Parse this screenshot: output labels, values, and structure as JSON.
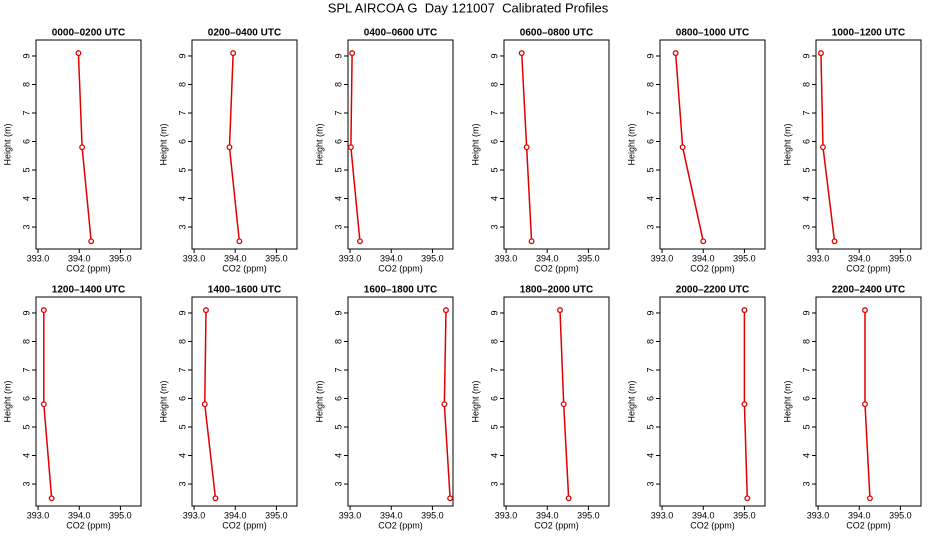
{
  "title": "SPL AIRCOA G  Day 121007  Calibrated Profiles",
  "chart_data": [
    {
      "type": "line",
      "title": "0000–0200 UTC",
      "x_label": "CO2 (ppm)",
      "y_label": "Height (m)",
      "color": "#e00000",
      "xlim": [
        392.95,
        395.5
      ],
      "ylim": [
        2.23,
        9.56
      ],
      "xticks": [
        {
          "value": 393,
          "label": "393.0"
        },
        {
          "value": 394,
          "label": "394.0"
        },
        {
          "value": 395,
          "label": "395.0"
        }
      ],
      "yticks": [
        3,
        4,
        5,
        6,
        7,
        8,
        9
      ],
      "x": [
        393.98,
        394.07,
        394.29
      ],
      "values": [
        9.1,
        5.8,
        2.5
      ]
    },
    {
      "type": "line",
      "title": "0200–0400 UTC",
      "x_label": "CO2 (ppm)",
      "y_label": "Height (m)",
      "color": "#e00000",
      "xlim": [
        392.95,
        395.5
      ],
      "ylim": [
        2.23,
        9.56
      ],
      "xticks": [
        {
          "value": 393,
          "label": "393.0"
        },
        {
          "value": 394,
          "label": "394.0"
        },
        {
          "value": 395,
          "label": "395.0"
        }
      ],
      "yticks": [
        3,
        4,
        5,
        6,
        7,
        8,
        9
      ],
      "x": [
        393.95,
        393.86,
        394.1
      ],
      "values": [
        9.1,
        5.8,
        2.5
      ]
    },
    {
      "type": "line",
      "title": "0400–0600 UTC",
      "x_label": "CO2 (ppm)",
      "y_label": "Height (m)",
      "color": "#e00000",
      "xlim": [
        392.95,
        395.5
      ],
      "ylim": [
        2.23,
        9.56
      ],
      "xticks": [
        {
          "value": 393,
          "label": "393.0"
        },
        {
          "value": 394,
          "label": "394.0"
        },
        {
          "value": 395,
          "label": "395.0"
        }
      ],
      "yticks": [
        3,
        4,
        5,
        6,
        7,
        8,
        9
      ],
      "x": [
        393.05,
        393.02,
        393.24
      ],
      "values": [
        9.1,
        5.8,
        2.5
      ]
    },
    {
      "type": "line",
      "title": "0600–0800 UTC",
      "x_label": "CO2 (ppm)",
      "y_label": "Height (m)",
      "color": "#e00000",
      "xlim": [
        392.95,
        395.5
      ],
      "ylim": [
        2.23,
        9.56
      ],
      "xticks": [
        {
          "value": 393,
          "label": "393.0"
        },
        {
          "value": 394,
          "label": "394.0"
        },
        {
          "value": 395,
          "label": "395.0"
        }
      ],
      "yticks": [
        3,
        4,
        5,
        6,
        7,
        8,
        9
      ],
      "x": [
        393.38,
        393.5,
        393.62
      ],
      "values": [
        9.1,
        5.8,
        2.5
      ]
    },
    {
      "type": "line",
      "title": "0800–1000 UTC",
      "x_label": "CO2 (ppm)",
      "y_label": "Height (m)",
      "color": "#e00000",
      "xlim": [
        392.95,
        395.5
      ],
      "ylim": [
        2.23,
        9.56
      ],
      "xticks": [
        {
          "value": 393,
          "label": "393.0"
        },
        {
          "value": 394,
          "label": "394.0"
        },
        {
          "value": 395,
          "label": "395.0"
        }
      ],
      "yticks": [
        3,
        4,
        5,
        6,
        7,
        8,
        9
      ],
      "x": [
        393.33,
        393.5,
        394.0
      ],
      "values": [
        9.1,
        5.8,
        2.5
      ]
    },
    {
      "type": "line",
      "title": "1000–1200 UTC",
      "x_label": "CO2 (ppm)",
      "y_label": "Height (m)",
      "color": "#e00000",
      "xlim": [
        392.95,
        395.5
      ],
      "ylim": [
        2.23,
        9.56
      ],
      "xticks": [
        {
          "value": 393,
          "label": "393.0"
        },
        {
          "value": 394,
          "label": "394.0"
        },
        {
          "value": 395,
          "label": "395.0"
        }
      ],
      "yticks": [
        3,
        4,
        5,
        6,
        7,
        8,
        9
      ],
      "x": [
        393.07,
        393.12,
        393.4
      ],
      "values": [
        9.1,
        5.8,
        2.5
      ]
    },
    {
      "type": "line",
      "title": "1200–1400 UTC",
      "x_label": "CO2 (ppm)",
      "y_label": "Height (m)",
      "color": "#e00000",
      "xlim": [
        392.95,
        395.5
      ],
      "ylim": [
        2.23,
        9.56
      ],
      "xticks": [
        {
          "value": 393,
          "label": "393.0"
        },
        {
          "value": 394,
          "label": "394.0"
        },
        {
          "value": 395,
          "label": "395.0"
        }
      ],
      "yticks": [
        3,
        4,
        5,
        6,
        7,
        8,
        9
      ],
      "x": [
        393.14,
        393.14,
        393.33
      ],
      "values": [
        9.1,
        5.8,
        2.5
      ]
    },
    {
      "type": "line",
      "title": "1400–1600 UTC",
      "x_label": "CO2 (ppm)",
      "y_label": "Height (m)",
      "color": "#e00000",
      "xlim": [
        392.95,
        395.5
      ],
      "ylim": [
        2.23,
        9.56
      ],
      "xticks": [
        {
          "value": 393,
          "label": "393.0"
        },
        {
          "value": 394,
          "label": "394.0"
        },
        {
          "value": 395,
          "label": "395.0"
        }
      ],
      "yticks": [
        3,
        4,
        5,
        6,
        7,
        8,
        9
      ],
      "x": [
        393.29,
        393.26,
        393.52
      ],
      "values": [
        9.1,
        5.8,
        2.5
      ]
    },
    {
      "type": "line",
      "title": "1600–1800 UTC",
      "x_label": "CO2 (ppm)",
      "y_label": "Height (m)",
      "color": "#e00000",
      "xlim": [
        392.95,
        395.5
      ],
      "ylim": [
        2.23,
        9.56
      ],
      "xticks": [
        {
          "value": 393,
          "label": "393.0"
        },
        {
          "value": 394,
          "label": "394.0"
        },
        {
          "value": 395,
          "label": "395.0"
        }
      ],
      "yticks": [
        3,
        4,
        5,
        6,
        7,
        8,
        9
      ],
      "x": [
        395.33,
        395.29,
        395.43
      ],
      "values": [
        9.1,
        5.8,
        2.5
      ]
    },
    {
      "type": "line",
      "title": "1800–2000 UTC",
      "x_label": "CO2 (ppm)",
      "y_label": "Height (m)",
      "color": "#e00000",
      "xlim": [
        392.95,
        395.5
      ],
      "ylim": [
        2.23,
        9.56
      ],
      "xticks": [
        {
          "value": 393,
          "label": "393.0"
        },
        {
          "value": 394,
          "label": "394.0"
        },
        {
          "value": 395,
          "label": "395.0"
        }
      ],
      "yticks": [
        3,
        4,
        5,
        6,
        7,
        8,
        9
      ],
      "x": [
        394.31,
        394.4,
        394.52
      ],
      "values": [
        9.1,
        5.8,
        2.5
      ]
    },
    {
      "type": "line",
      "title": "2000–2200 UTC",
      "x_label": "CO2 (ppm)",
      "y_label": "Height (m)",
      "color": "#e00000",
      "xlim": [
        392.95,
        395.5
      ],
      "ylim": [
        2.23,
        9.56
      ],
      "xticks": [
        {
          "value": 393,
          "label": "393.0"
        },
        {
          "value": 394,
          "label": "394.0"
        },
        {
          "value": 395,
          "label": "395.0"
        }
      ],
      "yticks": [
        3,
        4,
        5,
        6,
        7,
        8,
        9
      ],
      "x": [
        395.0,
        395.0,
        395.07
      ],
      "values": [
        9.1,
        5.8,
        2.5
      ]
    },
    {
      "type": "line",
      "title": "2200–2400 UTC",
      "x_label": "CO2 (ppm)",
      "y_label": "Height (m)",
      "color": "#e00000",
      "xlim": [
        392.95,
        395.5
      ],
      "ylim": [
        2.23,
        9.56
      ],
      "xticks": [
        {
          "value": 393,
          "label": "393.0"
        },
        {
          "value": 394,
          "label": "394.0"
        },
        {
          "value": 395,
          "label": "395.0"
        }
      ],
      "yticks": [
        3,
        4,
        5,
        6,
        7,
        8,
        9
      ],
      "x": [
        394.14,
        394.14,
        394.26
      ],
      "values": [
        9.1,
        5.8,
        2.5
      ]
    }
  ]
}
